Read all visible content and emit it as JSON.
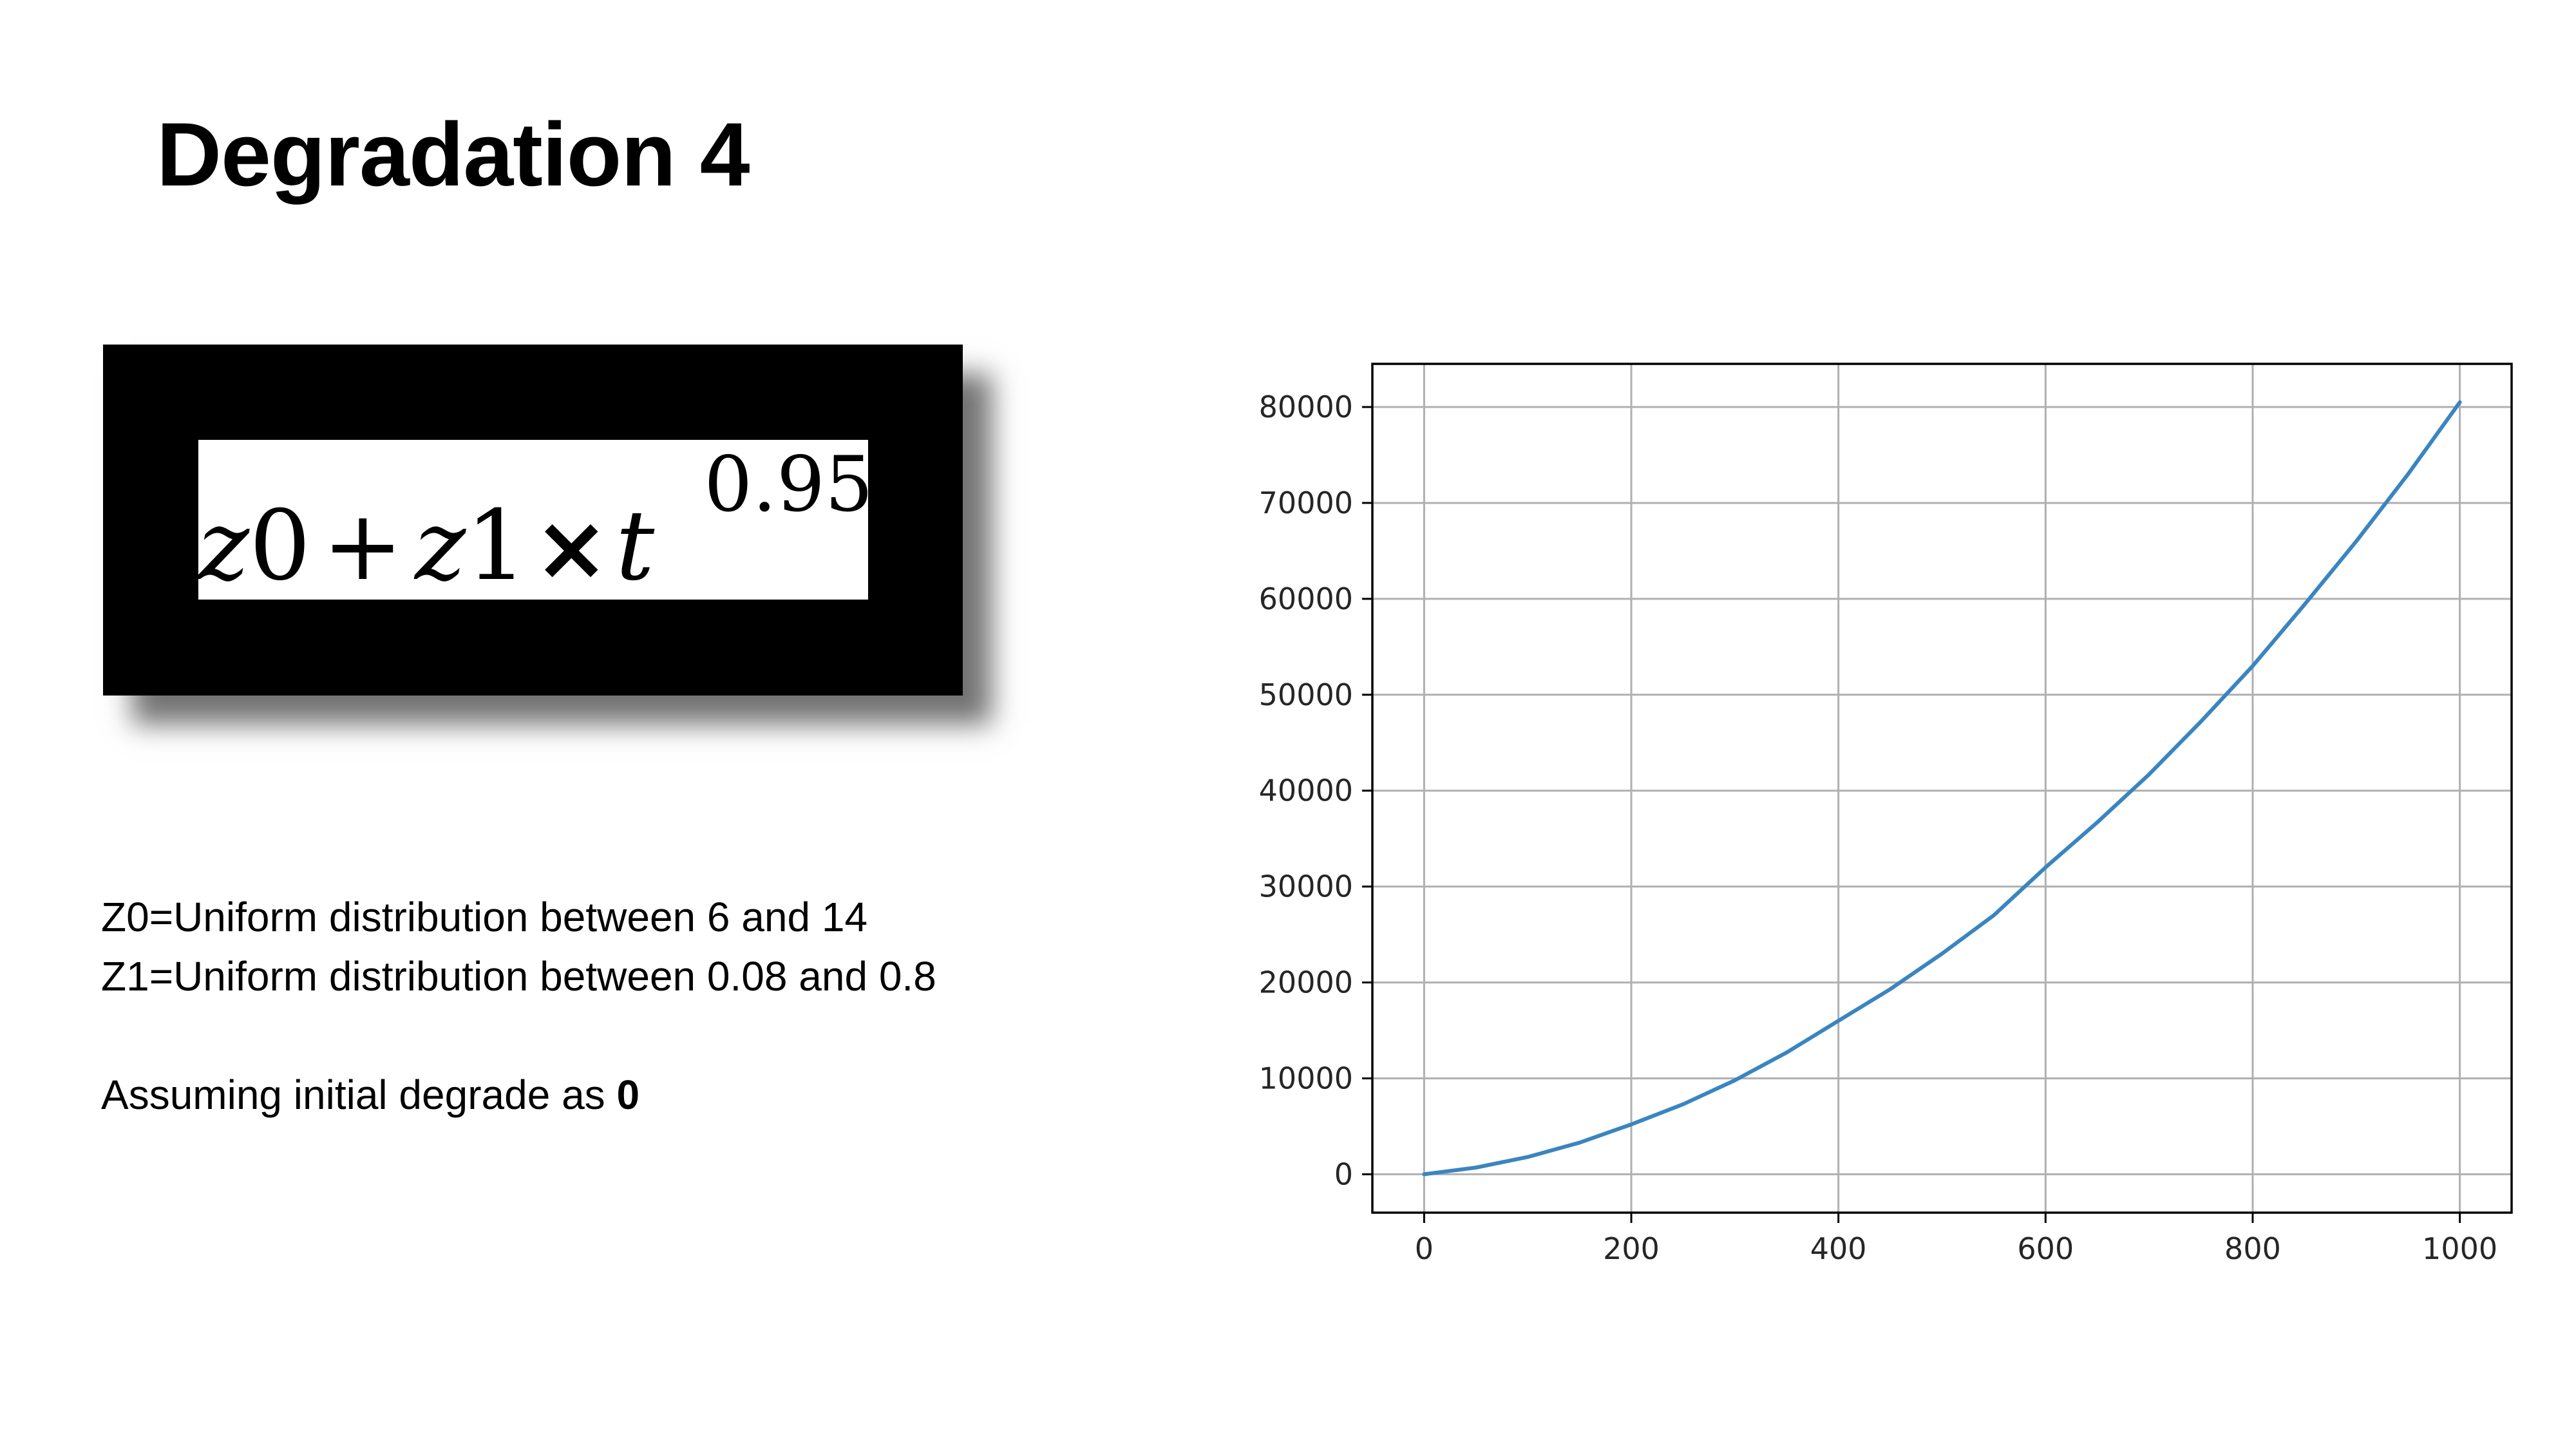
{
  "slide": {
    "title": "Degradation 4"
  },
  "formula": {
    "z0_var": "z",
    "z0_sub": "0",
    "plus": "+",
    "z1_var": "z",
    "z1_sub": "1",
    "times": "×",
    "t_var": "t",
    "exponent": "0.95"
  },
  "description": {
    "line1": "Z0=Uniform distribution between 6 and 14",
    "line2": "Z1=Uniform distribution between 0.08 and 0.8",
    "line3_prefix": "Assuming initial degrade as ",
    "line3_value": "0"
  },
  "chart_data": {
    "type": "line",
    "title": "",
    "xlabel": "",
    "ylabel": "",
    "xlim": [
      -50,
      1050
    ],
    "ylim": [
      -4000,
      84500
    ],
    "xticks": [
      0,
      200,
      400,
      600,
      800,
      1000
    ],
    "yticks": [
      0,
      10000,
      20000,
      30000,
      40000,
      50000,
      60000,
      70000,
      80000
    ],
    "grid": true,
    "line_color": "#3a85c0",
    "series": [
      {
        "x": [
          0,
          50,
          100,
          150,
          200,
          250,
          300,
          350,
          400,
          450,
          500,
          550,
          600,
          650,
          700,
          750,
          800,
          850,
          900,
          950,
          1000
        ],
        "y": [
          0,
          700,
          1800,
          3300,
          5200,
          7300,
          9800,
          12700,
          16000,
          19300,
          23000,
          27000,
          32000,
          36700,
          41700,
          47200,
          53000,
          59400,
          66000,
          73000,
          80500
        ]
      }
    ]
  }
}
